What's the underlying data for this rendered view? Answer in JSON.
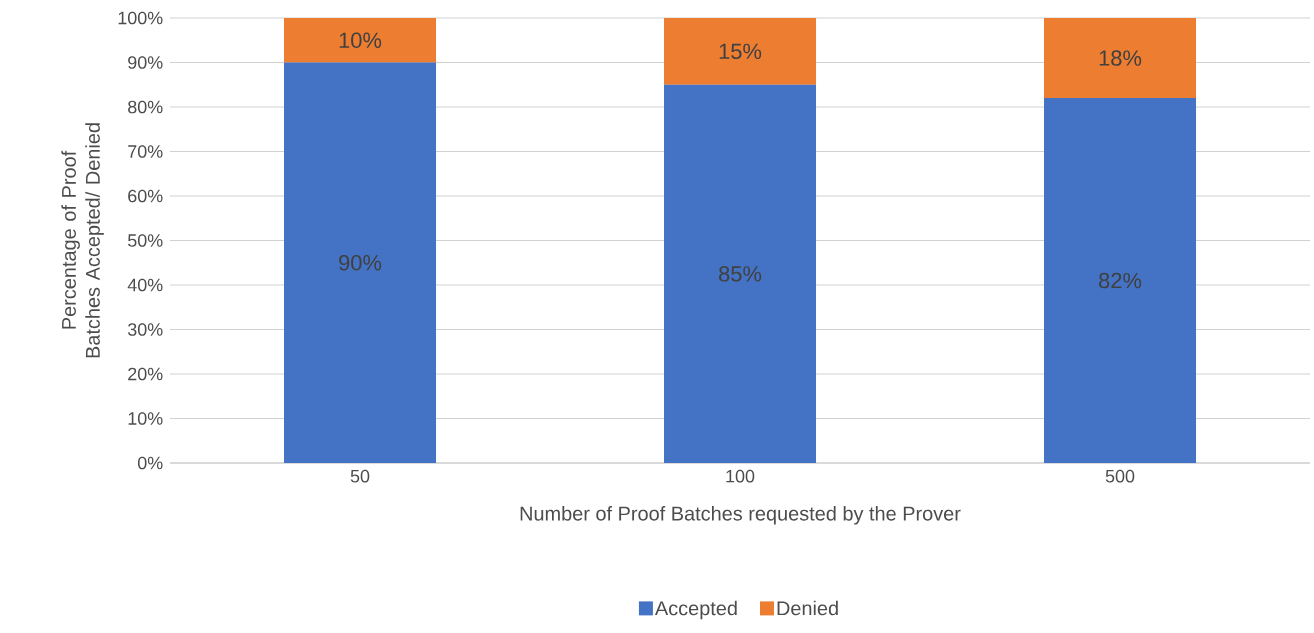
{
  "chart_data": {
    "type": "bar",
    "stacked": true,
    "categories": [
      "50",
      "100",
      "500"
    ],
    "series": [
      {
        "name": "Accepted",
        "color": "#4472c4",
        "values": [
          90,
          85,
          82
        ],
        "value_labels": [
          "90%",
          "85%",
          "82%"
        ]
      },
      {
        "name": "Denied",
        "color": "#ed7d31",
        "values": [
          10,
          15,
          18
        ],
        "value_labels": [
          "10%",
          "15%",
          "18%"
        ]
      }
    ],
    "xlabel": "Number of Proof Batches requested by the Prover",
    "ylabel": "Percentage of Proof Batches Accepted/ Denied",
    "ylim": [
      0,
      100
    ],
    "yticks": [
      {
        "value": 0,
        "label": "0%"
      },
      {
        "value": 10,
        "label": "10%"
      },
      {
        "value": 20,
        "label": "20%"
      },
      {
        "value": 30,
        "label": "30%"
      },
      {
        "value": 40,
        "label": "40%"
      },
      {
        "value": 50,
        "label": "50%"
      },
      {
        "value": 60,
        "label": "60%"
      },
      {
        "value": 70,
        "label": "70%"
      },
      {
        "value": 80,
        "label": "80%"
      },
      {
        "value": 90,
        "label": "90%"
      },
      {
        "value": 100,
        "label": "100%"
      }
    ],
    "grid": "y",
    "legend": "bottom"
  }
}
